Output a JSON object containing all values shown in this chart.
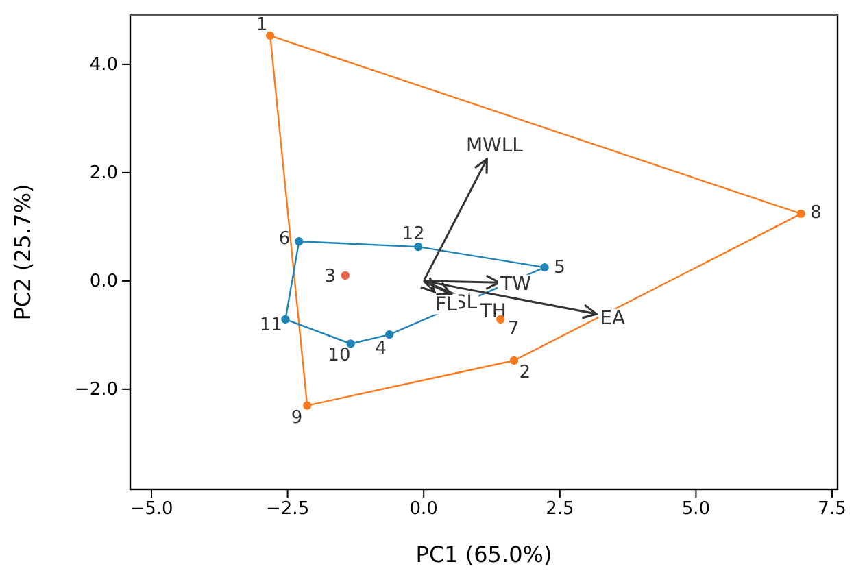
{
  "chart_data": {
    "type": "scatter",
    "xlabel": "PC1 (65.0%)",
    "ylabel": "PC2 (25.7%)",
    "xlim": [
      -5.39,
      7.6
    ],
    "ylim": [
      -3.85,
      4.91
    ],
    "xticks": [
      {
        "value": -5,
        "label": "−5.0"
      },
      {
        "value": -2.5,
        "label": "−2.5"
      },
      {
        "value": 0,
        "label": "0.0"
      },
      {
        "value": 2.5,
        "label": "2.5"
      },
      {
        "value": 5,
        "label": "5.0"
      },
      {
        "value": 7.5,
        "label": "7.5"
      }
    ],
    "yticks": [
      {
        "value": -2,
        "label": "−2.0"
      },
      {
        "value": 0,
        "label": "0.0"
      },
      {
        "value": 2,
        "label": "2.0"
      },
      {
        "value": 4,
        "label": "4.0"
      }
    ],
    "grid": false,
    "legend": false,
    "marker": "circle",
    "series": [
      {
        "type": "line",
        "marker": "none",
        "color": "#f97a1f",
        "x": [
          -2.82,
          6.93
        ],
        "values": [
          4.53,
          1.24
        ]
      },
      {
        "type": "line",
        "marker": "none",
        "color": "#f97a1f",
        "x": [
          6.93,
          1.66
        ],
        "values": [
          1.24,
          -1.47
        ]
      },
      {
        "type": "line",
        "marker": "none",
        "color": "#f97a1f",
        "x": [
          1.66,
          -2.14
        ],
        "values": [
          -1.47,
          -2.3
        ]
      },
      {
        "type": "line",
        "marker": "none",
        "color": "#f97a1f",
        "x": [
          -2.14,
          -2.82
        ],
        "values": [
          -2.3,
          4.53
        ]
      },
      {
        "type": "line",
        "marker": "none",
        "color": "#1f84b8",
        "x": [
          -2.29,
          -0.1
        ],
        "values": [
          0.73,
          0.63
        ]
      },
      {
        "type": "line",
        "marker": "none",
        "color": "#1f84b8",
        "x": [
          -0.1,
          2.22
        ],
        "values": [
          0.63,
          0.25
        ]
      },
      {
        "type": "line",
        "marker": "none",
        "color": "#1f84b8",
        "x": [
          2.22,
          -0.63
        ],
        "values": [
          0.25,
          -0.99
        ]
      },
      {
        "type": "line",
        "marker": "none",
        "color": "#1f84b8",
        "x": [
          -0.63,
          -1.34
        ],
        "values": [
          -0.99,
          -1.16
        ]
      },
      {
        "type": "line",
        "marker": "none",
        "color": "#1f84b8",
        "x": [
          -1.34,
          -2.54
        ],
        "values": [
          -1.16,
          -0.71
        ]
      },
      {
        "type": "line",
        "marker": "none",
        "color": "#1f84b8",
        "x": [
          -2.54,
          -2.29
        ],
        "values": [
          -0.71,
          0.73
        ]
      },
      {
        "color": "#f97a1f",
        "x": [
          -2.82,
          6.93,
          1.66,
          -2.14,
          1.41
        ],
        "values": [
          4.53,
          1.24,
          -1.47,
          -2.3,
          -0.71
        ]
      },
      {
        "color": "#1f84b8",
        "x": [
          -2.29,
          -0.1,
          2.22,
          -0.63,
          -1.34,
          -2.54
        ],
        "values": [
          0.73,
          0.63,
          0.25,
          -0.99,
          -1.16,
          -0.71
        ]
      },
      {
        "color": "#e8664a",
        "x": [
          -1.44
        ],
        "values": [
          0.1
        ]
      },
      {
        "type": "line",
        "marker": "none",
        "name": "MWLL",
        "color": "#333333",
        "x": [
          0,
          1.16
        ],
        "values": [
          0,
          2.25
        ]
      },
      {
        "type": "line",
        "marker": "none",
        "name": "TW",
        "color": "#333333",
        "x": [
          0,
          1.39
        ],
        "values": [
          0,
          -0.03
        ]
      },
      {
        "type": "line",
        "marker": "none",
        "name": "EA",
        "color": "#333333",
        "x": [
          0,
          3.17
        ],
        "values": [
          0,
          -0.61
        ]
      },
      {
        "type": "line",
        "marker": "none",
        "name": "TH",
        "color": "#333333",
        "x": [
          0,
          1.0
        ],
        "values": [
          0,
          -0.43
        ]
      },
      {
        "type": "line",
        "marker": "none",
        "name": "SL",
        "color": "#333333",
        "x": [
          0,
          0.5
        ],
        "values": [
          0,
          -0.25
        ]
      },
      {
        "type": "line",
        "marker": "none",
        "name": "FL",
        "color": "#333333",
        "x": [
          0,
          0.2
        ],
        "values": [
          0,
          -0.2
        ]
      }
    ],
    "annotations": [
      {
        "text": "1",
        "x": -2.82,
        "y": 4.53
      },
      {
        "text": "8",
        "x": 6.93,
        "y": 1.24
      },
      {
        "text": "2",
        "x": 1.66,
        "y": -1.47
      },
      {
        "text": "9",
        "x": -2.14,
        "y": -2.3
      },
      {
        "text": "7",
        "x": 1.41,
        "y": -0.71
      },
      {
        "text": "3",
        "x": -1.44,
        "y": 0.1
      },
      {
        "text": "6",
        "x": -2.29,
        "y": 0.73
      },
      {
        "text": "12",
        "x": -0.1,
        "y": 0.63
      },
      {
        "text": "5",
        "x": 2.22,
        "y": 0.25
      },
      {
        "text": "11",
        "x": -2.54,
        "y": -0.71
      },
      {
        "text": "10",
        "x": -1.34,
        "y": -1.16
      },
      {
        "text": "4",
        "x": -0.63,
        "y": -0.99
      }
    ]
  }
}
